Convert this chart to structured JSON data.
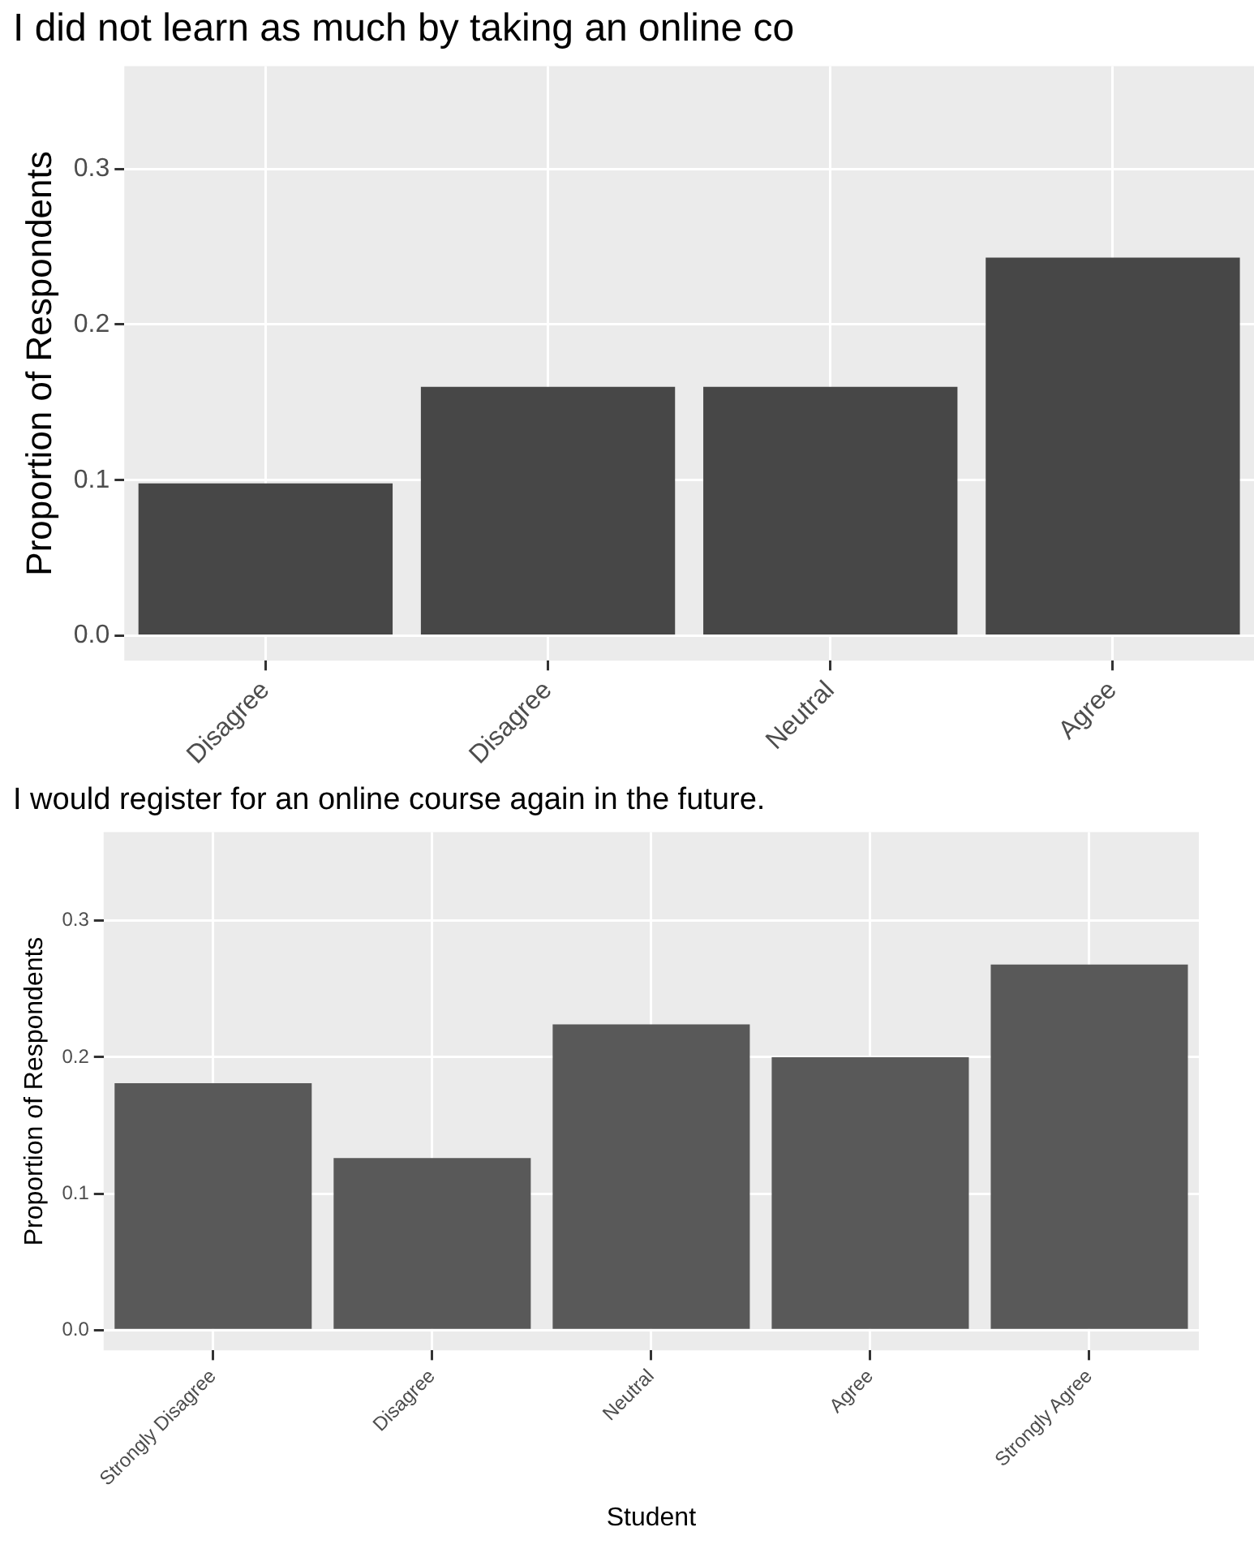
{
  "chart_data": [
    {
      "type": "bar",
      "title": "I did not learn as much by taking an online co",
      "ylabel": "Proportion of Respondents",
      "categories": [
        "Disagree",
        "Disagree",
        "Neutral",
        "Agree"
      ],
      "values": [
        0.098,
        0.16,
        0.16,
        0.243
      ],
      "color": "#474747",
      "ylim": [
        -0.016,
        0.366
      ],
      "yticks": [
        {
          "value": 0,
          "label": "0.0"
        },
        0.1,
        0.2,
        0.3
      ],
      "grid": true,
      "legend": false
    },
    {
      "type": "bar",
      "title": "I would register for an online course again in the future.",
      "xlabel": "Student",
      "ylabel": "Proportion of Respondents",
      "categories": [
        "Strongly Disagree",
        "Disagree",
        "Neutral",
        "Agree",
        "Strongly Agree"
      ],
      "values": [
        0.181,
        0.126,
        0.224,
        0.2,
        0.268
      ],
      "color": "#595959",
      "ylim": [
        -0.015,
        0.365
      ],
      "yticks": [
        {
          "value": 0,
          "label": "0.0"
        },
        0.1,
        0.2,
        0.3
      ],
      "grid": true,
      "legend": false
    }
  ]
}
